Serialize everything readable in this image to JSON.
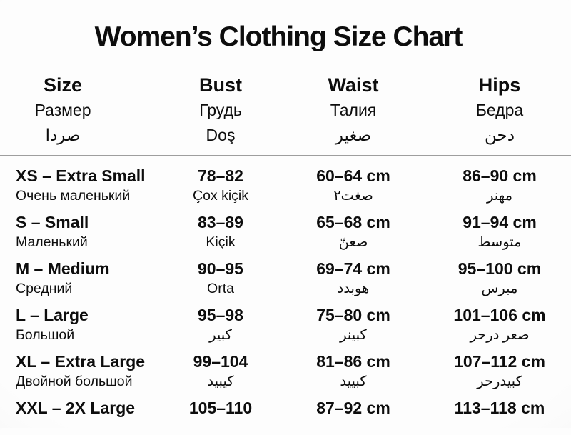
{
  "title": "Women’s Clothing Size Chart",
  "colors": {
    "text": "#0d0d0d",
    "divider": "#9e9e9e",
    "background": "#f5f5f5"
  },
  "columns": [
    {
      "en": "Size",
      "ru": "Размер",
      "line3": "صردا"
    },
    {
      "en": "Bust",
      "ru": "Грудь",
      "line3": "Doş"
    },
    {
      "en": "Waist",
      "ru": "Талия",
      "line3": "صغير"
    },
    {
      "en": "Hips",
      "ru": "Бедра",
      "line3": "دحن"
    }
  ],
  "rows": [
    {
      "size": "XS – Extra Small",
      "size_sub": "Очень маленький",
      "bust": "78–82",
      "bust_sub": "Çox kiçik",
      "waist": "60–64 cm",
      "waist_sub": "صغت٢",
      "hips": "86–90 cm",
      "hips_sub": "مهنر"
    },
    {
      "size": "S – Small",
      "size_sub": "Маленький",
      "bust": "83–89",
      "bust_sub": "Kiçik",
      "waist": "65–68 cm",
      "waist_sub": "صعنّ",
      "hips": "91–94 cm",
      "hips_sub": "متوسط"
    },
    {
      "size": "M – Medium",
      "size_sub": "Средний",
      "bust": "90–95",
      "bust_sub": "Orta",
      "waist": "69–74 cm",
      "waist_sub": "هوبدد",
      "hips": "95–100 cm",
      "hips_sub": "مبرس"
    },
    {
      "size": "L – Large",
      "size_sub": "Большой",
      "bust": "95–98",
      "bust_sub": "كبير",
      "waist": "75–80 cm",
      "waist_sub": "كبينر",
      "hips": "101–106 cm",
      "hips_sub": "صعر درحر"
    },
    {
      "size": "XL – Extra Large",
      "size_sub": "Двойной большой",
      "bust": "99–104",
      "bust_sub": "كيبيد",
      "waist": "81–86 cm",
      "waist_sub": "كبييد",
      "hips": "107–112 cm",
      "hips_sub": "كبيدرحر"
    },
    {
      "size": "XXL – 2X Large",
      "size_sub": "",
      "bust": "105–110",
      "bust_sub": "",
      "waist": "87–92 cm",
      "waist_sub": "",
      "hips": "113–118 cm",
      "hips_sub": ""
    }
  ],
  "chart_data": {
    "type": "table",
    "title": "Women’s Clothing Size Chart",
    "columns": [
      "Size",
      "Bust",
      "Waist",
      "Hips"
    ],
    "column_subtitles": [
      [
        "Размер",
        "صردا"
      ],
      [
        "Грудь",
        "Doş"
      ],
      [
        "Талия",
        "صغير"
      ],
      [
        "Бедра",
        "دحن"
      ]
    ],
    "rows": [
      [
        "XS – Extra Small",
        "Очень маленький",
        "78–82",
        "Çox kiçik",
        "60–64 cm",
        "صغت٢",
        "86–90 cm",
        "مهنر"
      ],
      [
        "S – Small",
        "Маленький",
        "83–89",
        "Kiçik",
        "65–68 cm",
        "صعنّ",
        "91–94 cm",
        "متوسط"
      ],
      [
        "M – Medium",
        "Средний",
        "90–95",
        "Orta",
        "69–74 cm",
        "هوبدد",
        "95–100 cm",
        "مبرس"
      ],
      [
        "L – Large",
        "Большой",
        "95–98",
        "كبير",
        "75–80 cm",
        "كبينر",
        "101–106 cm",
        "صعر درحر"
      ],
      [
        "XL – Extra Large",
        "Двойной большой",
        "99–104",
        "كيبيد",
        "81–86 cm",
        "كبييد",
        "107–112 cm",
        "كبيدرحر"
      ],
      [
        "XXL – 2X Large",
        "",
        "105–110",
        "",
        "87–92 cm",
        "",
        "113–118 cm",
        ""
      ]
    ]
  }
}
